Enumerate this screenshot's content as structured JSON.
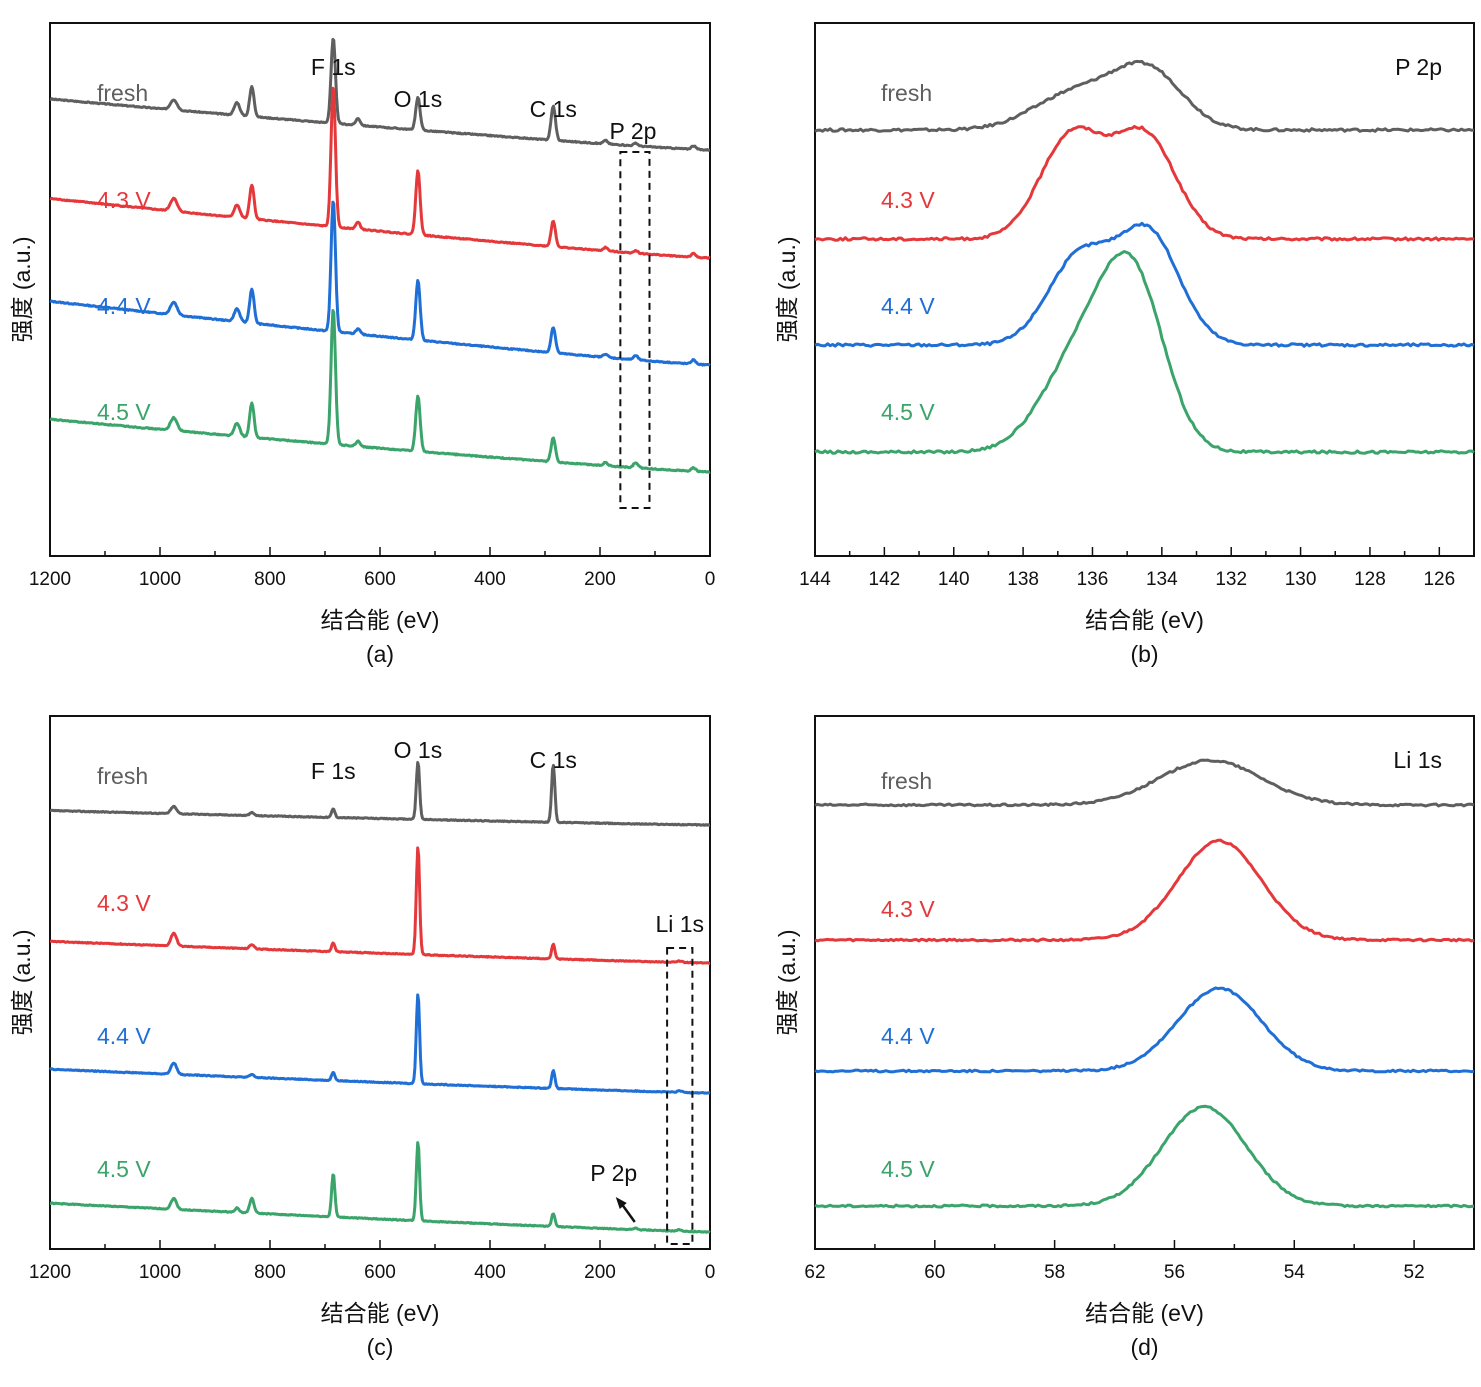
{
  "series_colors": {
    "fresh": "#5f5f5f",
    "4.3 V": "#e5383b",
    "4.4 V": "#1f6fd6",
    "4.5 V": "#3aa46a"
  },
  "chart_data": [
    {
      "id": "a",
      "type": "line",
      "panel_label": "(a)",
      "title": "",
      "xlabel": "结合能 (eV)",
      "ylabel": "强度 (a.u.)",
      "xlim": [
        1200,
        0
      ],
      "x_reversed": true,
      "xticks": [
        1200,
        1000,
        800,
        600,
        400,
        200,
        0
      ],
      "xtick_labels": [
        "1200",
        "1000",
        "800",
        "600",
        "400",
        "200",
        "0"
      ],
      "minor_step": 100,
      "grid": false,
      "y_ticks_shown": false,
      "peak_labels": [
        {
          "text": "F 1s",
          "x": 685
        },
        {
          "text": "O 1s",
          "x": 531
        },
        {
          "text": "C 1s",
          "x": 285
        },
        {
          "text": "P 2p",
          "x": 140
        }
      ],
      "highlight_box": {
        "x_range": [
          163,
          110
        ],
        "label": "P 2p"
      },
      "series": [
        {
          "name": "fresh",
          "offset": 3,
          "baseline_high": 0.6,
          "baseline_low": 0.0,
          "peaks": [
            [
              975,
              0.12,
              6
            ],
            [
              860,
              0.15,
              5
            ],
            [
              833,
              0.35,
              4
            ],
            [
              685,
              1.0,
              4
            ],
            [
              640,
              0.08,
              4
            ],
            [
              531,
              0.38,
              4
            ],
            [
              285,
              0.4,
              4
            ],
            [
              190,
              0.04,
              4
            ],
            [
              135,
              0.03,
              4
            ],
            [
              30,
              0.04,
              4
            ]
          ]
        },
        {
          "name": "4.3 V",
          "offset": 2,
          "baseline_high": 0.7,
          "baseline_low": 0.0,
          "peaks": [
            [
              975,
              0.15,
              6
            ],
            [
              860,
              0.15,
              5
            ],
            [
              833,
              0.4,
              4
            ],
            [
              685,
              1.65,
              4
            ],
            [
              640,
              0.08,
              4
            ],
            [
              531,
              0.75,
              4
            ],
            [
              285,
              0.3,
              4
            ],
            [
              190,
              0.04,
              4
            ],
            [
              135,
              0.03,
              4
            ],
            [
              30,
              0.04,
              4
            ]
          ]
        },
        {
          "name": "4.4 V",
          "offset": 1,
          "baseline_high": 0.75,
          "baseline_low": 0.0,
          "peaks": [
            [
              975,
              0.15,
              6
            ],
            [
              860,
              0.15,
              5
            ],
            [
              833,
              0.4,
              4
            ],
            [
              685,
              1.55,
              4
            ],
            [
              640,
              0.06,
              4
            ],
            [
              531,
              0.7,
              4
            ],
            [
              285,
              0.3,
              4
            ],
            [
              190,
              0.04,
              4
            ],
            [
              135,
              0.05,
              4
            ],
            [
              30,
              0.05,
              4
            ]
          ]
        },
        {
          "name": "4.5 V",
          "offset": 0,
          "baseline_high": 0.62,
          "baseline_low": 0.0,
          "peaks": [
            [
              975,
              0.15,
              6
            ],
            [
              860,
              0.15,
              5
            ],
            [
              833,
              0.4,
              4
            ],
            [
              685,
              1.6,
              4
            ],
            [
              640,
              0.06,
              4
            ],
            [
              531,
              0.65,
              4
            ],
            [
              285,
              0.28,
              4
            ],
            [
              190,
              0.04,
              4
            ],
            [
              135,
              0.06,
              4
            ],
            [
              30,
              0.04,
              4
            ]
          ]
        }
      ]
    },
    {
      "id": "b",
      "type": "line",
      "panel_label": "(b)",
      "title": "P 2p",
      "xlabel": "结合能 (eV)",
      "ylabel": "强度 (a.u.)",
      "xlim": [
        144,
        125
      ],
      "x_reversed": true,
      "xticks": [
        144,
        142,
        140,
        138,
        136,
        134,
        132,
        130,
        128,
        126
      ],
      "xtick_labels": [
        "144",
        "142",
        "140",
        "138",
        "136",
        "134",
        "132",
        "130",
        "128",
        "126"
      ],
      "minor_step": 1,
      "grid": false,
      "y_ticks_shown": false,
      "series": [
        {
          "name": "fresh",
          "offset": 3,
          "peaks": [
            [
              136.5,
              0.17,
              1.2
            ],
            [
              134.4,
              0.27,
              1.0
            ]
          ]
        },
        {
          "name": "4.3 V",
          "offset": 2,
          "peaks": [
            [
              136.6,
              0.48,
              0.9
            ],
            [
              134.5,
              0.48,
              0.9
            ]
          ]
        },
        {
          "name": "4.4 V",
          "offset": 1,
          "peaks": [
            [
              136.4,
              0.4,
              0.9
            ],
            [
              134.4,
              0.52,
              0.9
            ]
          ]
        },
        {
          "name": "4.5 V",
          "offset": 0,
          "peaks": [
            [
              136.3,
              0.45,
              1.1
            ],
            [
              134.8,
              0.72,
              0.9
            ]
          ]
        }
      ]
    },
    {
      "id": "c",
      "type": "line",
      "panel_label": "(c)",
      "title": "",
      "xlabel": "结合能 (eV)",
      "ylabel": "强度 (a.u.)",
      "xlim": [
        1200,
        0
      ],
      "x_reversed": true,
      "xticks": [
        1200,
        1000,
        800,
        600,
        400,
        200,
        0
      ],
      "xtick_labels": [
        "1200",
        "1000",
        "800",
        "600",
        "400",
        "200",
        "0"
      ],
      "minor_step": 100,
      "grid": false,
      "y_ticks_shown": false,
      "peak_labels": [
        {
          "text": "F 1s",
          "x": 685
        },
        {
          "text": "O 1s",
          "x": 531
        },
        {
          "text": "C 1s",
          "x": 285
        },
        {
          "text": "Li 1s",
          "x": 55
        }
      ],
      "highlight_box": {
        "x_range": [
          78,
          32
        ],
        "label": "Li 1s"
      },
      "arrow_annotation": {
        "text": "P 2p",
        "x": 135
      },
      "series": [
        {
          "name": "fresh",
          "offset": 3,
          "baseline_high": 0.2,
          "baseline_low": 0.0,
          "peaks": [
            [
              975,
              0.1,
              5
            ],
            [
              833,
              0.04,
              4
            ],
            [
              685,
              0.12,
              3
            ],
            [
              531,
              0.8,
              3
            ],
            [
              285,
              0.8,
              3
            ]
          ]
        },
        {
          "name": "4.3 V",
          "offset": 2,
          "baseline_high": 0.3,
          "baseline_low": 0.0,
          "peaks": [
            [
              975,
              0.18,
              5
            ],
            [
              833,
              0.06,
              4
            ],
            [
              685,
              0.12,
              3
            ],
            [
              531,
              1.5,
              3
            ],
            [
              285,
              0.2,
              3
            ],
            [
              55,
              0.02,
              4
            ]
          ]
        },
        {
          "name": "4.4 V",
          "offset": 1,
          "baseline_high": 0.33,
          "baseline_low": 0.0,
          "peaks": [
            [
              975,
              0.16,
              5
            ],
            [
              833,
              0.04,
              4
            ],
            [
              685,
              0.12,
              3
            ],
            [
              531,
              1.25,
              3
            ],
            [
              285,
              0.25,
              3
            ],
            [
              55,
              0.02,
              4
            ]
          ]
        },
        {
          "name": "4.5 V",
          "offset": 0,
          "baseline_high": 0.4,
          "baseline_low": 0.0,
          "peaks": [
            [
              975,
              0.15,
              5
            ],
            [
              860,
              0.06,
              4
            ],
            [
              833,
              0.2,
              4
            ],
            [
              685,
              0.6,
              3
            ],
            [
              531,
              1.1,
              3
            ],
            [
              285,
              0.18,
              3
            ],
            [
              135,
              0.02,
              3
            ],
            [
              55,
              0.02,
              4
            ]
          ]
        }
      ]
    },
    {
      "id": "d",
      "type": "line",
      "panel_label": "(d)",
      "title": "Li 1s",
      "xlabel": "结合能 (eV)",
      "ylabel": "强度 (a.u.)",
      "xlim": [
        62,
        51
      ],
      "x_reversed": true,
      "xticks": [
        62,
        60,
        58,
        56,
        54,
        52
      ],
      "xtick_labels": [
        "62",
        "60",
        "58",
        "56",
        "54",
        "52"
      ],
      "minor_step": 1,
      "grid": false,
      "y_ticks_shown": false,
      "series": [
        {
          "name": "fresh",
          "offset": 3,
          "peaks": [
            [
              55.4,
              0.27,
              0.85
            ]
          ]
        },
        {
          "name": "4.3 V",
          "offset": 2,
          "peaks": [
            [
              55.25,
              0.6,
              0.7
            ]
          ]
        },
        {
          "name": "4.4 V",
          "offset": 1,
          "peaks": [
            [
              55.25,
              0.5,
              0.7
            ]
          ]
        },
        {
          "name": "4.5 V",
          "offset": 0,
          "peaks": [
            [
              55.5,
              0.6,
              0.7
            ]
          ]
        }
      ]
    }
  ]
}
